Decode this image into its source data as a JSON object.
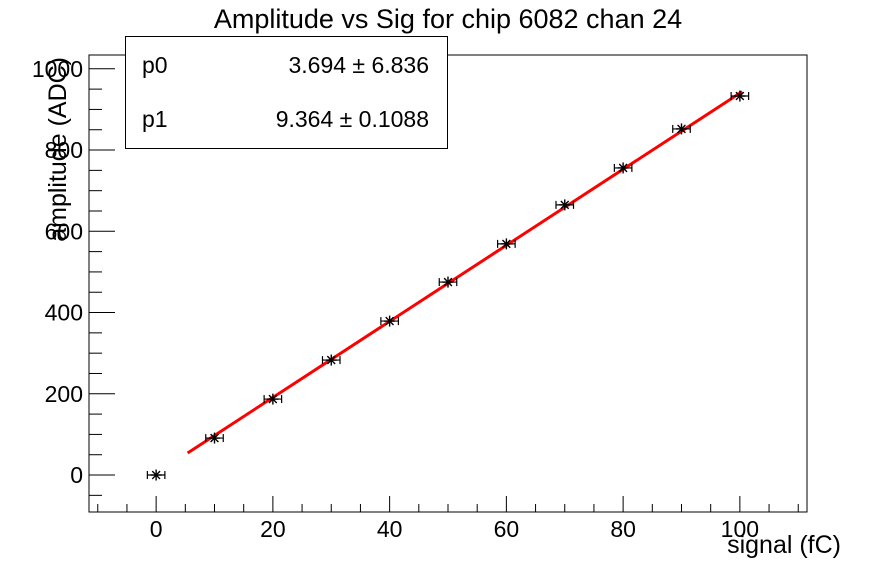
{
  "stats_box": {
    "rows": [
      {
        "param": "p0",
        "value": "3.694 ± 6.836"
      },
      {
        "param": "p1",
        "value": "9.364 ± 0.1088"
      }
    ]
  },
  "chart_data": {
    "type": "scatter",
    "title": "Amplitude vs Sig for chip 6082 chan 24",
    "xlabel": "signal (fC)",
    "ylabel": "amplitude (ADC)",
    "x": [
      0,
      10,
      20,
      30,
      40,
      50,
      60,
      70,
      80,
      90,
      100
    ],
    "y": [
      0,
      91,
      187,
      283,
      379,
      475,
      569,
      665,
      756,
      852,
      933
    ],
    "x_error": 1.5,
    "marker": "asterisk-with-x-error-bars",
    "marker_color": "#000000",
    "fit": {
      "type": "linear",
      "p0": 3.694,
      "p0_err": 6.836,
      "p1": 9.364,
      "p1_err": 0.1088,
      "range": [
        5.4,
        100.4
      ],
      "color": "#ff0000"
    },
    "xlim": [
      -11.5,
      111.5
    ],
    "ylim": [
      -91,
      1034
    ],
    "x_major_ticks": [
      0,
      20,
      40,
      60,
      80,
      100
    ],
    "x_minor_step": 5,
    "y_major_ticks": [
      0,
      200,
      400,
      600,
      800,
      1000
    ],
    "y_minor_step": 50,
    "grid": false,
    "legend": "none",
    "background": "#ffffff"
  }
}
